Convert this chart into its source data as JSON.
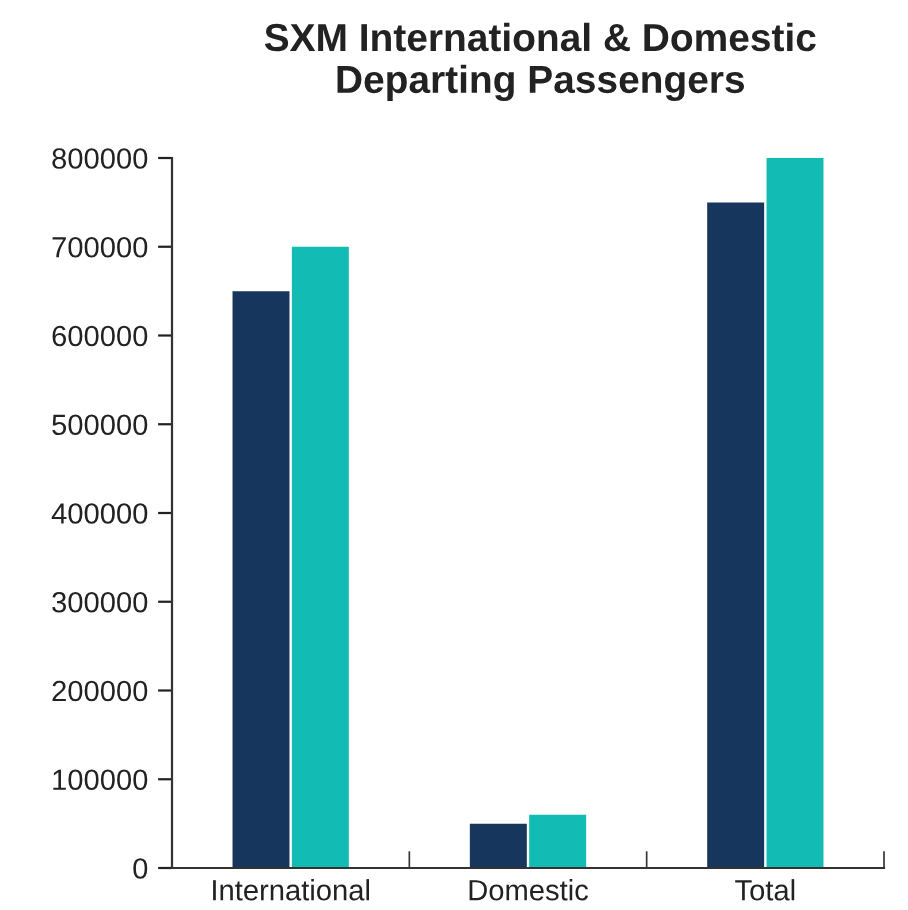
{
  "chart_data": {
    "type": "bar",
    "title": "SXM International & Domestic\nDeparting Passengers",
    "categories": [
      "International",
      "Domestic",
      "Total"
    ],
    "series": [
      {
        "color": "#17365d",
        "values": [
          650000,
          50000,
          750000
        ]
      },
      {
        "color": "#12bcb5",
        "values": [
          700000,
          60000,
          800000
        ]
      }
    ],
    "ylim": [
      0,
      800000
    ],
    "yticks": [
      0,
      100000,
      200000,
      300000,
      400000,
      500000,
      600000,
      700000,
      800000
    ],
    "grid": false,
    "legend": false
  }
}
